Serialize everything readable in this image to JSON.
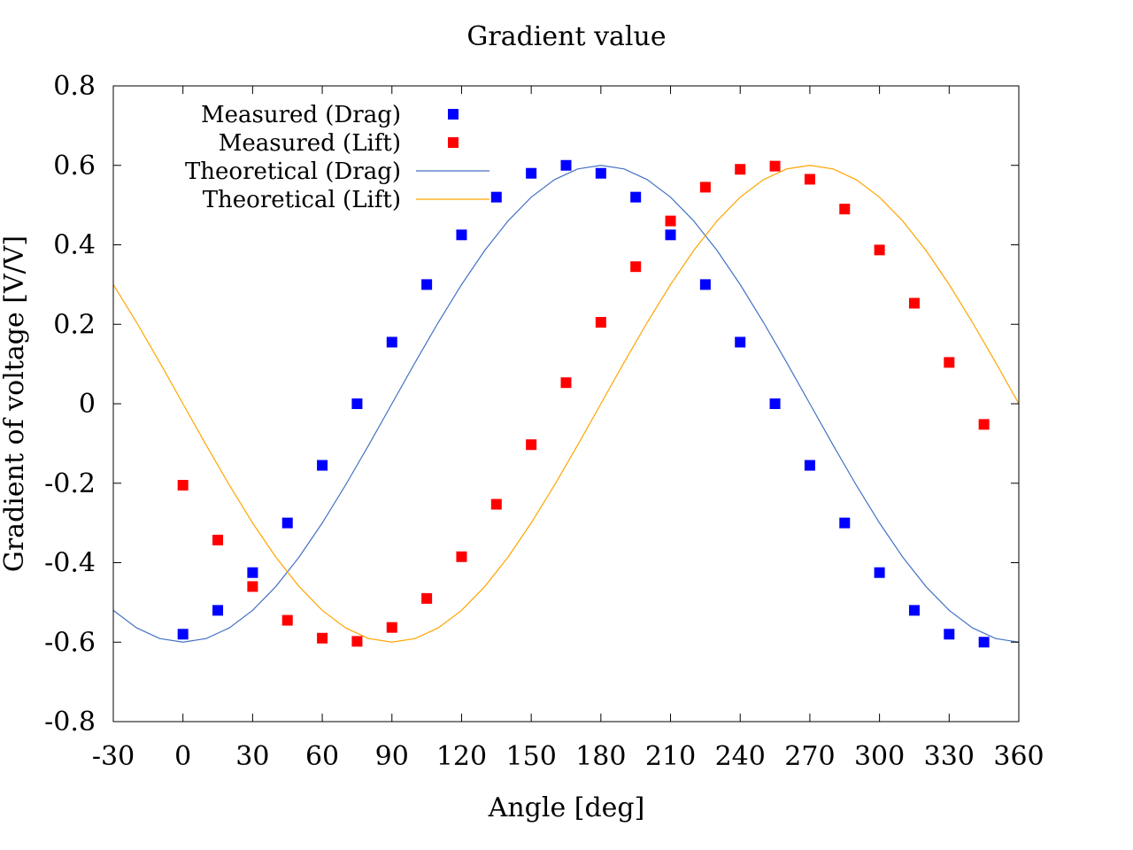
{
  "chart_data": {
    "type": "scatter",
    "title": "Gradient value",
    "xlabel": "Angle [deg]",
    "ylabel": "Gradient of voltage [V/V]",
    "xlim": [
      -30,
      360
    ],
    "ylim": [
      -0.8,
      0.8
    ],
    "x_ticks": [
      "-30",
      "0",
      "30",
      "60",
      "90",
      "120",
      "150",
      "180",
      "210",
      "240",
      "270",
      "300",
      "330",
      "360"
    ],
    "y_ticks": [
      "0.8",
      "0.6",
      "0.4",
      "0.2",
      "0",
      "-0.2",
      "-0.4",
      "-0.6",
      "-0.8"
    ],
    "grid": false,
    "legend_position": "top-left",
    "series": [
      {
        "name": "Measured (Drag)",
        "kind": "points",
        "color": "#0000ff",
        "x": [
          0,
          15,
          30,
          45,
          60,
          75,
          90,
          105,
          120,
          135,
          150,
          165,
          180,
          195,
          210,
          225,
          240,
          255,
          270,
          285,
          300,
          315,
          330,
          345
        ],
        "y": [
          -0.58,
          -0.52,
          -0.425,
          -0.3,
          -0.155,
          0.0,
          0.155,
          0.3,
          0.425,
          0.52,
          0.58,
          0.6,
          0.58,
          0.52,
          0.425,
          0.3,
          0.155,
          0.0,
          -0.155,
          -0.3,
          -0.425,
          -0.52,
          -0.58,
          -0.6
        ]
      },
      {
        "name": "Measured (Lift)",
        "kind": "points",
        "color": "#ff0000",
        "x": [
          0,
          15,
          30,
          45,
          60,
          75,
          90,
          105,
          120,
          135,
          150,
          165,
          180,
          195,
          210,
          225,
          240,
          255,
          270,
          285,
          300,
          315,
          330,
          345
        ],
        "y": [
          -0.205,
          -0.343,
          -0.46,
          -0.545,
          -0.59,
          -0.598,
          -0.563,
          -0.49,
          -0.385,
          -0.253,
          -0.103,
          0.053,
          0.205,
          0.345,
          0.46,
          0.545,
          0.59,
          0.598,
          0.565,
          0.49,
          0.387,
          0.253,
          0.104,
          -0.052
        ]
      },
      {
        "name": "Theoretical (Drag)",
        "kind": "line",
        "color": "#4472c4",
        "x": [
          -30,
          -20,
          -10,
          0,
          10,
          20,
          30,
          40,
          50,
          60,
          70,
          80,
          90,
          100,
          110,
          120,
          130,
          140,
          150,
          160,
          170,
          180,
          190,
          200,
          210,
          220,
          230,
          240,
          250,
          260,
          270,
          280,
          290,
          300,
          310,
          320,
          330,
          340,
          350,
          360
        ],
        "y": [
          -0.52,
          -0.564,
          -0.591,
          -0.6,
          -0.591,
          -0.564,
          -0.52,
          -0.46,
          -0.386,
          -0.3,
          -0.205,
          -0.104,
          0.0,
          0.104,
          0.205,
          0.3,
          0.386,
          0.46,
          0.52,
          0.564,
          0.591,
          0.6,
          0.591,
          0.564,
          0.52,
          0.46,
          0.386,
          0.3,
          0.205,
          0.104,
          0.0,
          -0.104,
          -0.205,
          -0.3,
          -0.386,
          -0.46,
          -0.52,
          -0.564,
          -0.591,
          -0.6
        ]
      },
      {
        "name": "Theoretical (Lift)",
        "kind": "line",
        "color": "#ffa500",
        "x": [
          -30,
          -20,
          -10,
          0,
          10,
          20,
          30,
          40,
          50,
          60,
          70,
          80,
          90,
          100,
          110,
          120,
          130,
          140,
          150,
          160,
          170,
          180,
          190,
          200,
          210,
          220,
          230,
          240,
          250,
          260,
          270,
          280,
          290,
          300,
          310,
          320,
          330,
          340,
          350,
          360
        ],
        "y": [
          0.3,
          0.205,
          0.104,
          0.0,
          -0.104,
          -0.205,
          -0.3,
          -0.386,
          -0.46,
          -0.52,
          -0.564,
          -0.591,
          -0.6,
          -0.591,
          -0.564,
          -0.52,
          -0.46,
          -0.386,
          -0.3,
          -0.205,
          -0.104,
          0.0,
          0.104,
          0.205,
          0.3,
          0.386,
          0.46,
          0.52,
          0.564,
          0.591,
          0.6,
          0.591,
          0.564,
          0.52,
          0.46,
          0.386,
          0.3,
          0.205,
          0.104,
          0.0
        ]
      }
    ]
  }
}
